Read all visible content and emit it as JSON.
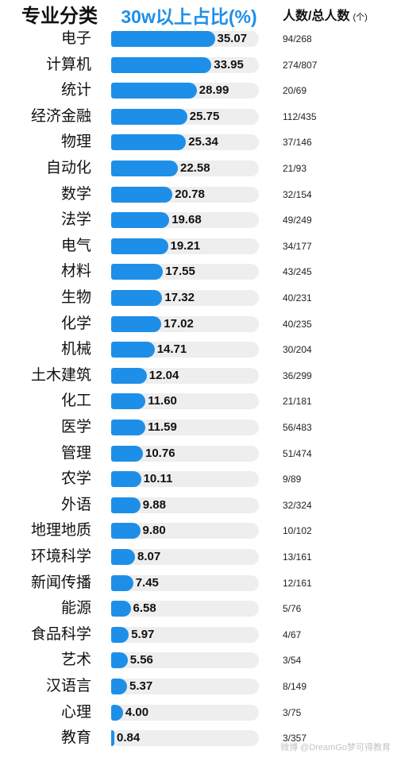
{
  "chart_data": {
    "type": "bar",
    "orientation": "horizontal",
    "headers": {
      "category": "专业分类",
      "value": "30w以上占比(%)",
      "count": "人数/总人数",
      "count_unit": "(个)"
    },
    "categories": [
      "电子",
      "计算机",
      "统计",
      "经济金融",
      "物理",
      "自动化",
      "数学",
      "法学",
      "电气",
      "材料",
      "生物",
      "化学",
      "机械",
      "土木建筑",
      "化工",
      "医学",
      "管理",
      "农学",
      "外语",
      "地理地质",
      "环境科学",
      "新闻传播",
      "能源",
      "食品科学",
      "艺术",
      "汉语言",
      "心理",
      "教育"
    ],
    "values": [
      35.07,
      33.95,
      28.99,
      25.75,
      25.34,
      22.58,
      20.78,
      19.68,
      19.21,
      17.55,
      17.32,
      17.02,
      14.71,
      12.04,
      11.6,
      11.59,
      10.76,
      10.11,
      9.88,
      9.8,
      8.07,
      7.45,
      6.58,
      5.97,
      5.56,
      5.37,
      4.0,
      0.84
    ],
    "value_labels": [
      "35.07",
      "33.95",
      "28.99",
      "25.75",
      "25.34",
      "22.58",
      "20.78",
      "19.68",
      "19.21",
      "17.55",
      "17.32",
      "17.02",
      "14.71",
      "12.04",
      "11.60",
      "11.59",
      "10.76",
      "10.11",
      "9.88",
      "9.80",
      "8.07",
      "7.45",
      "6.58",
      "5.97",
      "5.56",
      "5.37",
      "4.00",
      "0.84"
    ],
    "counts": [
      "94/268",
      "274/807",
      "20/69",
      "112/435",
      "37/146",
      "21/93",
      "32/154",
      "49/249",
      "34/177",
      "43/245",
      "40/231",
      "40/235",
      "30/204",
      "36/299",
      "21/181",
      "56/483",
      "51/474",
      "9/89",
      "32/324",
      "10/102",
      "13/161",
      "12/161",
      "5/76",
      "4/67",
      "3/54",
      "8/149",
      "3/75",
      "3/357"
    ],
    "xlim": [
      0,
      50
    ],
    "grid": false,
    "legend": "none"
  },
  "watermark": "微博 @DreamGo梦可得教育",
  "colors": {
    "bar": "#1e8fe8",
    "track": "#eeeeef",
    "header_accent": "#1e8fe8"
  }
}
